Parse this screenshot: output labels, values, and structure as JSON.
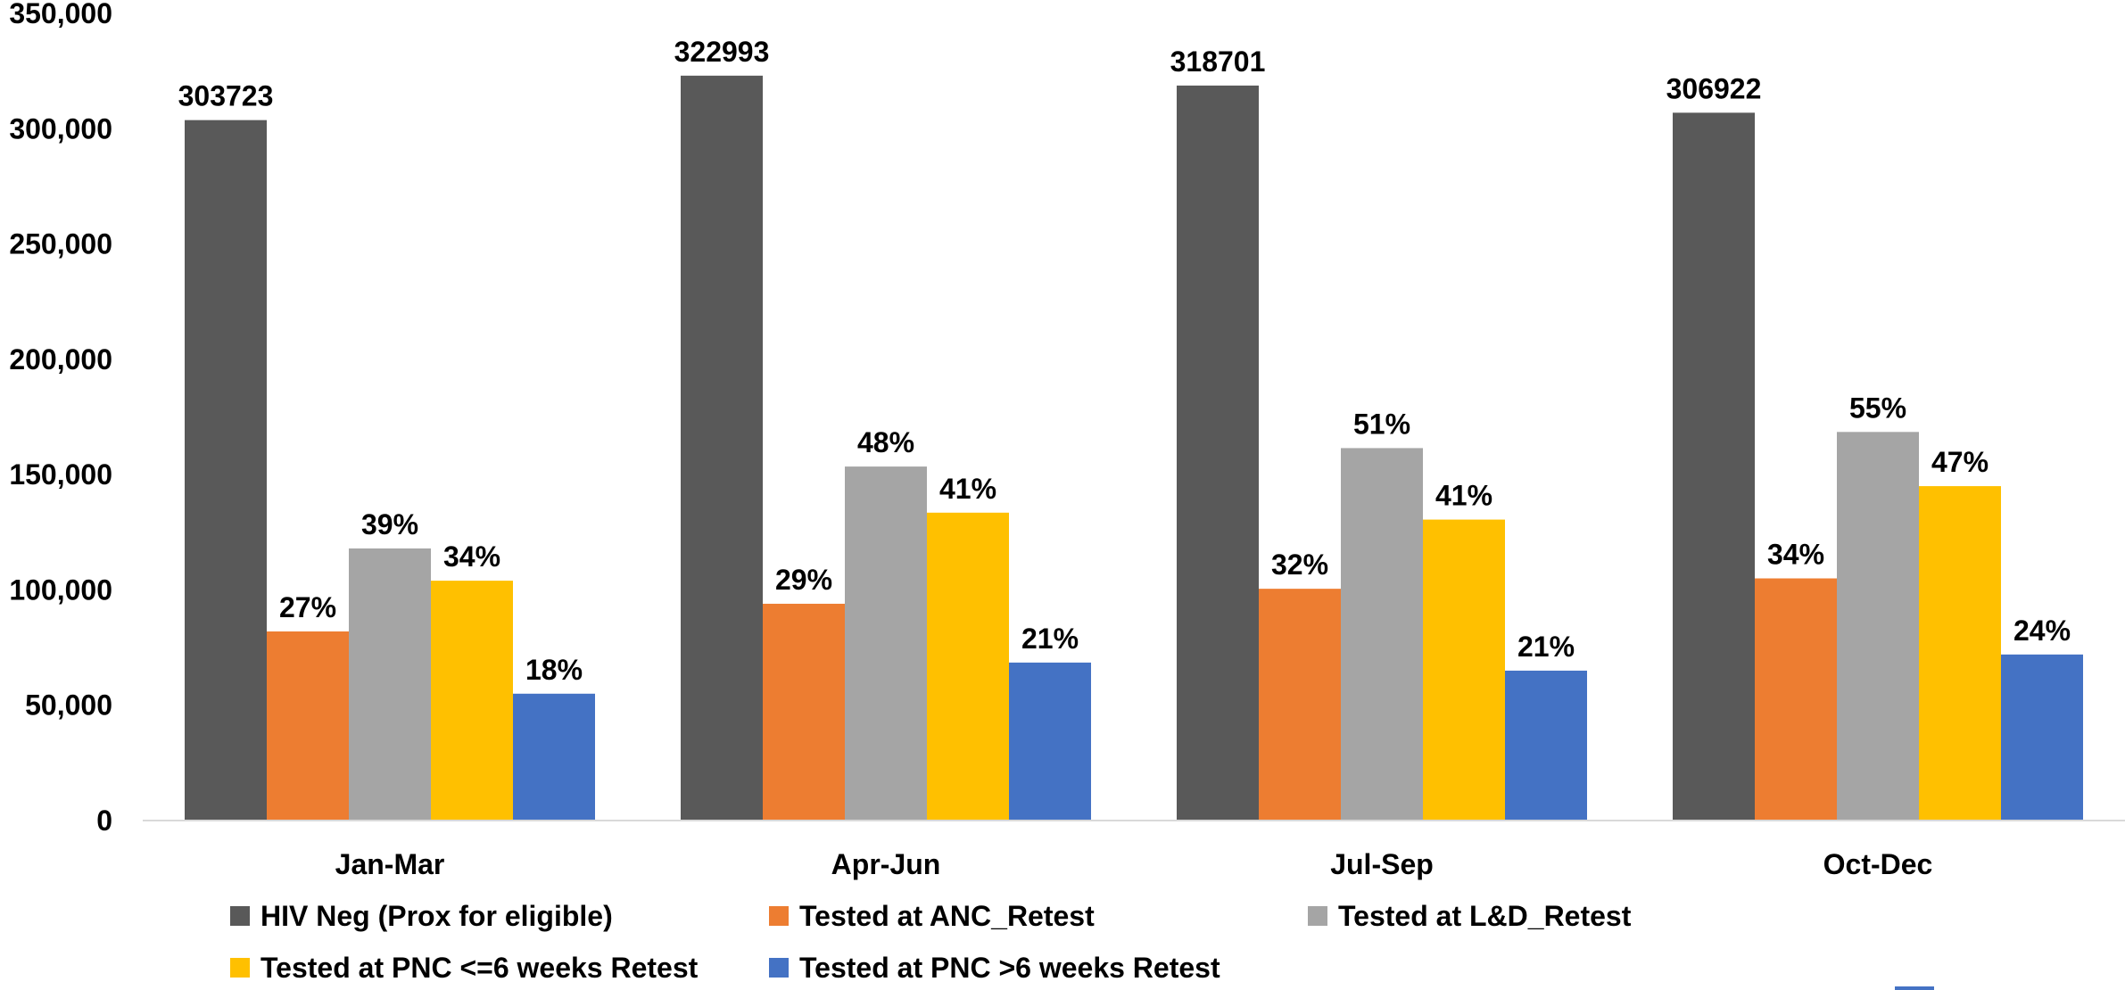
{
  "chart_data": {
    "type": "bar",
    "title": "",
    "xlabel": "",
    "ylabel": "",
    "categories": [
      "Jan-Mar",
      "Apr-Jun",
      "Jul-Sep",
      "Oct-Dec"
    ],
    "ylim": [
      0,
      350000
    ],
    "yticks": [
      0,
      50000,
      100000,
      150000,
      200000,
      250000,
      300000,
      350000
    ],
    "ytick_labels": [
      "0",
      "50,000",
      "100,000",
      "150,000",
      "200,000",
      "250,000",
      "300,000",
      "350,000"
    ],
    "grid": false,
    "legend_position": "bottom",
    "series": [
      {
        "name": "HIV Neg (Prox for  eligible)",
        "color": "#595959",
        "values": [
          303723,
          322993,
          318701,
          306922
        ],
        "labels": [
          "303723",
          "322993",
          "318701",
          "306922"
        ]
      },
      {
        "name": "Tested at ANC_Retest",
        "color": "#ED7D31",
        "values": [
          82000,
          94000,
          100500,
          105000
        ],
        "labels": [
          "27%",
          "29%",
          "32%",
          "34%"
        ]
      },
      {
        "name": "Tested at L&D_Retest",
        "color": "#A5A5A5",
        "values": [
          118000,
          153500,
          161500,
          168500
        ],
        "labels": [
          "39%",
          "48%",
          "51%",
          "55%"
        ]
      },
      {
        "name": "Tested at PNC  <=6 weeks  Retest",
        "color": "#FFC000",
        "values": [
          104000,
          133500,
          130500,
          145000
        ],
        "labels": [
          "34%",
          "41%",
          "41%",
          "47%"
        ]
      },
      {
        "name": "Tested at PNC  >6 weeks  Retest",
        "color": "#4472C4",
        "values": [
          55000,
          68500,
          65000,
          72000
        ],
        "labels": [
          "18%",
          "21%",
          "21%",
          "24%"
        ]
      }
    ]
  }
}
